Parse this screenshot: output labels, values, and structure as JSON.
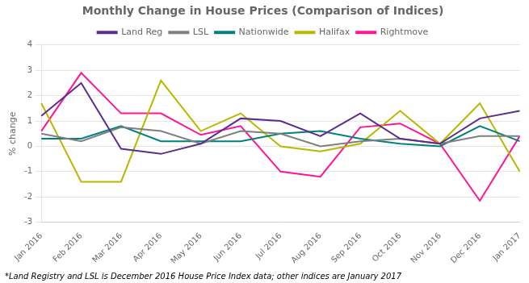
{
  "chart_data": {
    "type": "line",
    "title": "Monthly Change in House Prices (Comparison of Indices)",
    "ylabel": "% change",
    "annotations": [
      "*Land Registry and LSL is December 2016 House Price Index data; other indices are January 2017"
    ],
    "categories": [
      "Jan 2016",
      "Feb 2016",
      "Mar 2016",
      "Apr 2016",
      "May 2016",
      "Jun 2016",
      "Jul 2016",
      "Aug 2016",
      "Sep 2016",
      "Oct 2016",
      "Nov 2016",
      "Dec 2016",
      "Jan 2017"
    ],
    "ylim": [
      -3,
      4
    ],
    "yticks": [
      -3,
      -2,
      -1,
      0,
      1,
      2,
      3,
      4
    ],
    "grid": true,
    "legend": "top",
    "series": [
      {
        "name": "Land Reg",
        "color": "#5b2d8e",
        "values": [
          1.2,
          2.5,
          -0.1,
          -0.3,
          0.1,
          1.1,
          1.0,
          0.4,
          1.3,
          0.3,
          0.1,
          1.1,
          1.4
        ]
      },
      {
        "name": "LSL",
        "color": "#7f7f7f",
        "values": [
          0.5,
          0.2,
          0.75,
          0.6,
          0.1,
          0.6,
          0.5,
          0.0,
          0.2,
          0.3,
          0.1,
          0.4,
          0.4
        ]
      },
      {
        "name": "Nationwide",
        "color": "#008080",
        "values": [
          0.3,
          0.3,
          0.8,
          0.2,
          0.2,
          0.2,
          0.5,
          0.6,
          0.3,
          0.1,
          0.0,
          0.8,
          0.2
        ]
      },
      {
        "name": "Halifax",
        "color": "#b8b800",
        "values": [
          1.7,
          -1.4,
          -1.4,
          2.6,
          0.6,
          1.3,
          0.0,
          -0.2,
          0.1,
          1.4,
          0.1,
          1.7,
          -1.0
        ]
      },
      {
        "name": "Rightmove",
        "color": "#ff1493",
        "values": [
          0.6,
          2.9,
          1.3,
          1.3,
          0.45,
          0.8,
          -1.0,
          -1.2,
          0.75,
          0.9,
          0.1,
          -2.15,
          0.4
        ]
      }
    ]
  }
}
